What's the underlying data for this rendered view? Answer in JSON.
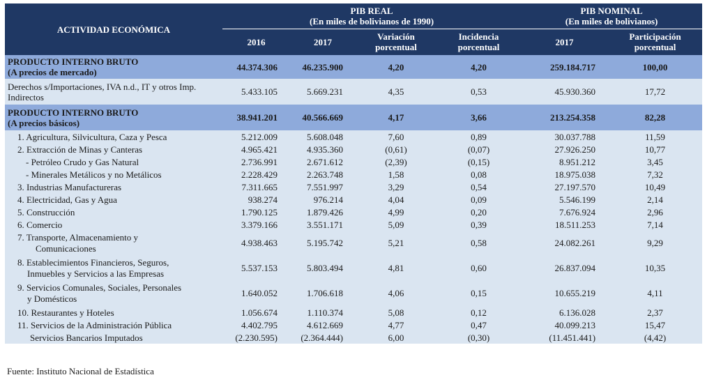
{
  "header": {
    "actividad": "ACTIVIDAD ECONÓMICA",
    "pib_real_title": "PIB REAL",
    "pib_real_sub": "(En miles de bolivianos de 1990)",
    "pib_nominal_title": "PIB NOMINAL",
    "pib_nominal_sub": "(En miles de bolivianos)",
    "col_2016": "2016",
    "col_2017": "2017",
    "col_var_1": "Variación",
    "col_var_2": "porcentual",
    "col_inc_1": "Incidencia",
    "col_inc_2": "porcentual",
    "col_nom_2017": "2017",
    "col_part_1": "Participación",
    "col_part_2": "porcentual"
  },
  "rows": [
    {
      "label": "PRODUCTO INTERNO BRUTO",
      "sublabel": "(A precios de mercado)",
      "v2016": "44.374.306",
      "v2017": "46.235.900",
      "var": "4,20",
      "inc": "4,20",
      "nom": "259.184.717",
      "part": "100,00"
    },
    {
      "label": "Derechos s/Importaciones, IVA n.d., IT y otros Imp. Indirectos",
      "v2016": "5.433.105",
      "v2017": "5.669.231",
      "var": "4,35",
      "inc": "0,53",
      "nom": "45.930.360",
      "part": "17,72"
    },
    {
      "label": "PRODUCTO INTERNO BRUTO",
      "sublabel": "(A precios básicos)",
      "v2016": "38.941.201",
      "v2017": "40.566.669",
      "var": "4,17",
      "inc": "3,66",
      "nom": "213.254.358",
      "part": "82,28"
    },
    {
      "label": "1. Agricultura, Silvicultura, Caza y Pesca",
      "v2016": "5.212.009",
      "v2017": "5.608.048",
      "var": "7,60",
      "inc": "0,89",
      "nom": "30.037.788",
      "part": "11,59"
    },
    {
      "label": "2. Extracción de Minas y Canteras",
      "v2016": "4.965.421",
      "v2017": "4.935.360",
      "var": "(0,61)",
      "inc": "(0,07)",
      "nom": "27.926.250",
      "part": "10,77"
    },
    {
      "label": "- Petróleo Crudo y Gas Natural",
      "v2016": "2.736.991",
      "v2017": "2.671.612",
      "var": "(2,39)",
      "inc": "(0,15)",
      "nom": "8.951.212",
      "part": "3,45"
    },
    {
      "label": "- Minerales Metálicos y no Metálicos",
      "v2016": "2.228.429",
      "v2017": "2.263.748",
      "var": "1,58",
      "inc": "0,08",
      "nom": "18.975.038",
      "part": "7,32"
    },
    {
      "label": "3. Industrias Manufactureras",
      "v2016": "7.311.665",
      "v2017": "7.551.997",
      "var": "3,29",
      "inc": "0,54",
      "nom": "27.197.570",
      "part": "10,49"
    },
    {
      "label": "4. Electricidad, Gas y Agua",
      "v2016": "938.274",
      "v2017": "976.214",
      "var": "4,04",
      "inc": "0,09",
      "nom": "5.546.199",
      "part": "2,14"
    },
    {
      "label": "5. Construcción",
      "v2016": "1.790.125",
      "v2017": "1.879.426",
      "var": "4,99",
      "inc": "0,20",
      "nom": "7.676.924",
      "part": "2,96"
    },
    {
      "label": "6. Comercio",
      "v2016": "3.379.166",
      "v2017": "3.551.171",
      "var": "5,09",
      "inc": "0,39",
      "nom": "18.511.253",
      "part": "7,14"
    },
    {
      "label": "7. Transporte, Almacenamiento y",
      "label2": "Comunicaciones",
      "v2016": "4.938.463",
      "v2017": "5.195.742",
      "var": "5,21",
      "inc": "0,58",
      "nom": "24.082.261",
      "part": "9,29"
    },
    {
      "label": "8. Establecimientos Financieros, Seguros,",
      "label2": "Inmuebles y Servicios a las Empresas",
      "v2016": "5.537.153",
      "v2017": "5.803.494",
      "var": "4,81",
      "inc": "0,60",
      "nom": "26.837.094",
      "part": "10,35"
    },
    {
      "label": "9. Servicios Comunales, Sociales, Personales",
      "label2": "y Domésticos",
      "v2016": "1.640.052",
      "v2017": "1.706.618",
      "var": "4,06",
      "inc": "0,15",
      "nom": "10.655.219",
      "part": "4,11"
    },
    {
      "label": "10. Restaurantes y Hoteles",
      "v2016": "1.056.674",
      "v2017": "1.110.374",
      "var": "5,08",
      "inc": "0,12",
      "nom": "6.136.028",
      "part": "2,37"
    },
    {
      "label": "11. Servicios de la Administración Pública",
      "v2016": "4.402.795",
      "v2017": "4.612.669",
      "var": "4,77",
      "inc": "0,47",
      "nom": "40.099.213",
      "part": "15,47"
    },
    {
      "label": "Servicios Bancarios Imputados",
      "v2016": "(2.230.595)",
      "v2017": "(2.364.444)",
      "var": "6,00",
      "inc": "(0,30)",
      "nom": "(11.451.441)",
      "part": "(4,42)"
    }
  ],
  "footer": "Fuente: Instituto Nacional de Estadística"
}
